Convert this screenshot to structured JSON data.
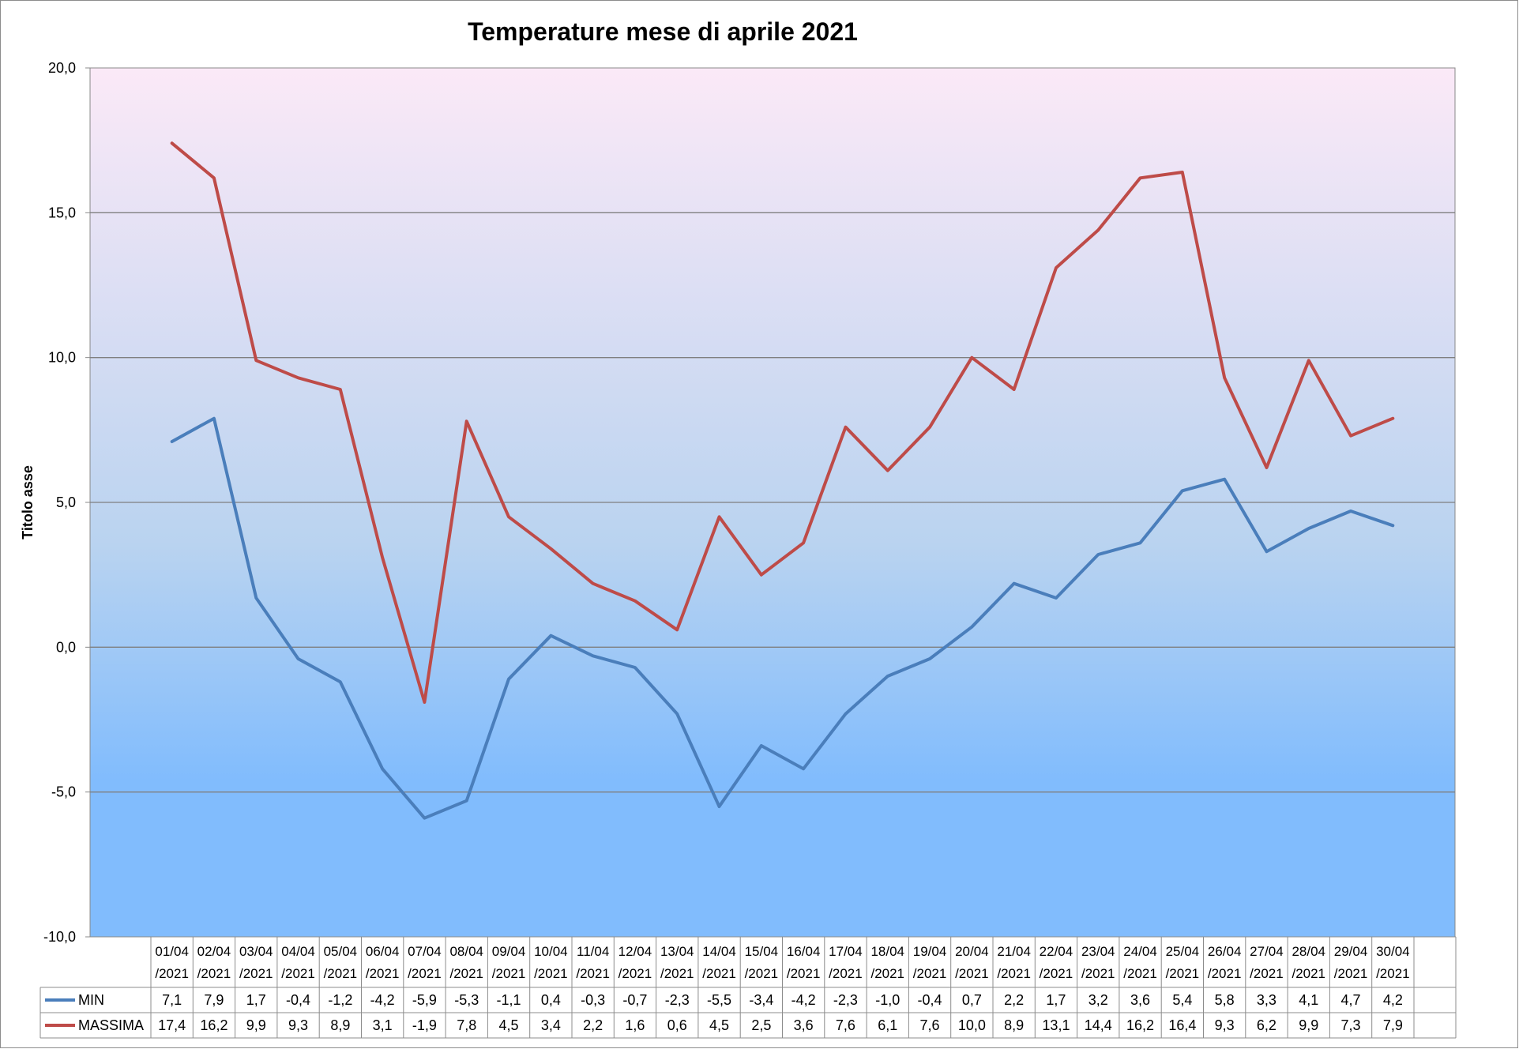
{
  "chart_data": {
    "type": "line",
    "title": "Temperature mese di aprile 2021",
    "xlabel": "",
    "ylabel": "Titolo asse",
    "ylim": [
      -10,
      20
    ],
    "ytick_step": 5,
    "ytick_labels": [
      "-10,0",
      "-5,0",
      "0,0",
      "5,0",
      "10,0",
      "15,0",
      "20,0"
    ],
    "grid": true,
    "legend": "data-table-left",
    "categories": [
      [
        "01/04",
        "/2021"
      ],
      [
        "02/04",
        "/2021"
      ],
      [
        "03/04",
        "/2021"
      ],
      [
        "04/04",
        "/2021"
      ],
      [
        "05/04",
        "/2021"
      ],
      [
        "06/04",
        "/2021"
      ],
      [
        "07/04",
        "/2021"
      ],
      [
        "08/04",
        "/2021"
      ],
      [
        "09/04",
        "/2021"
      ],
      [
        "10/04",
        "/2021"
      ],
      [
        "11/04",
        "/2021"
      ],
      [
        "12/04",
        "/2021"
      ],
      [
        "13/04",
        "/2021"
      ],
      [
        "14/04",
        "/2021"
      ],
      [
        "15/04",
        "/2021"
      ],
      [
        "16/04",
        "/2021"
      ],
      [
        "17/04",
        "/2021"
      ],
      [
        "18/04",
        "/2021"
      ],
      [
        "19/04",
        "/2021"
      ],
      [
        "20/04",
        "/2021"
      ],
      [
        "21/04",
        "/2021"
      ],
      [
        "22/04",
        "/2021"
      ],
      [
        "23/04",
        "/2021"
      ],
      [
        "24/04",
        "/2021"
      ],
      [
        "25/04",
        "/2021"
      ],
      [
        "26/04",
        "/2021"
      ],
      [
        "27/04",
        "/2021"
      ],
      [
        "28/04",
        "/2021"
      ],
      [
        "29/04",
        "/2021"
      ],
      [
        "30/04",
        "/2021"
      ]
    ],
    "series": [
      {
        "name": "MIN",
        "color": "#4a7ebb",
        "values": [
          7.1,
          7.9,
          1.7,
          -0.4,
          -1.2,
          -4.2,
          -5.9,
          -5.3,
          -1.1,
          0.4,
          -0.3,
          -0.7,
          -2.3,
          -5.5,
          -3.4,
          -4.2,
          -2.3,
          -1.0,
          -0.4,
          0.7,
          2.2,
          1.7,
          3.2,
          3.6,
          5.4,
          5.8,
          3.3,
          4.1,
          4.7,
          4.2
        ],
        "table_labels": [
          "7,1",
          "7,9",
          "1,7",
          "-0,4",
          "-1,2",
          "-4,2",
          "-5,9",
          "-5,3",
          "-1,1",
          "0,4",
          "-0,3",
          "-0,7",
          "-2,3",
          "-5,5",
          "-3,4",
          "-4,2",
          "-2,3",
          "-1,0",
          "-0,4",
          "0,7",
          "2,2",
          "1,7",
          "3,2",
          "3,6",
          "5,4",
          "5,8",
          "3,3",
          "4,1",
          "4,7",
          "4,2"
        ]
      },
      {
        "name": "MASSIMA",
        "color": "#be4b48",
        "values": [
          17.4,
          16.2,
          9.9,
          9.3,
          8.9,
          3.1,
          -1.9,
          7.8,
          4.5,
          3.4,
          2.2,
          1.6,
          0.6,
          4.5,
          2.5,
          3.6,
          7.6,
          6.1,
          7.6,
          10.0,
          8.9,
          13.1,
          14.4,
          16.2,
          16.4,
          9.3,
          6.2,
          9.9,
          7.3,
          7.9
        ],
        "table_labels": [
          "17,4",
          "16,2",
          "9,9",
          "9,3",
          "8,9",
          "3,1",
          "-1,9",
          "7,8",
          "4,5",
          "3,4",
          "2,2",
          "1,6",
          "0,6",
          "4,5",
          "2,5",
          "3,6",
          "7,6",
          "6,1",
          "7,6",
          "10,0",
          "8,9",
          "13,1",
          "14,4",
          "16,2",
          "16,4",
          "9,3",
          "6,2",
          "9,9",
          "7,3",
          "7,9"
        ]
      }
    ],
    "plot_background": {
      "top_color": "#fbe9f7",
      "bottom_color": "#81bcfd"
    }
  }
}
